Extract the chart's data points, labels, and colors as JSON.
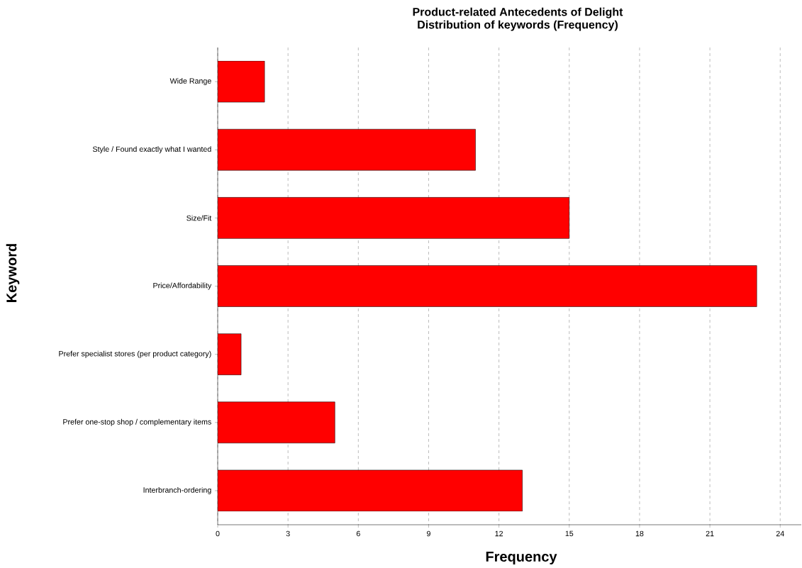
{
  "chart_data": {
    "type": "bar",
    "orientation": "horizontal",
    "title": "Product-related Antecedents of Delight",
    "subtitle": "Distribution of keywords (Frequency)",
    "xlabel": "Frequency",
    "ylabel": "Keyword",
    "categories": [
      "Wide Range",
      "Style / Found exactly what I wanted",
      "Size/Fit",
      "Price/Affordability",
      "Prefer specialist stores (per product category)",
      "Prefer one-stop shop / complementary items",
      "Interbranch-ordering"
    ],
    "values": [
      2,
      11,
      15,
      23,
      1,
      5,
      13
    ],
    "color": "#ff0000",
    "xlim": [
      0,
      24.9
    ],
    "xticks": [
      0,
      3,
      6,
      9,
      12,
      15,
      18,
      21,
      24
    ],
    "grid": "x"
  }
}
